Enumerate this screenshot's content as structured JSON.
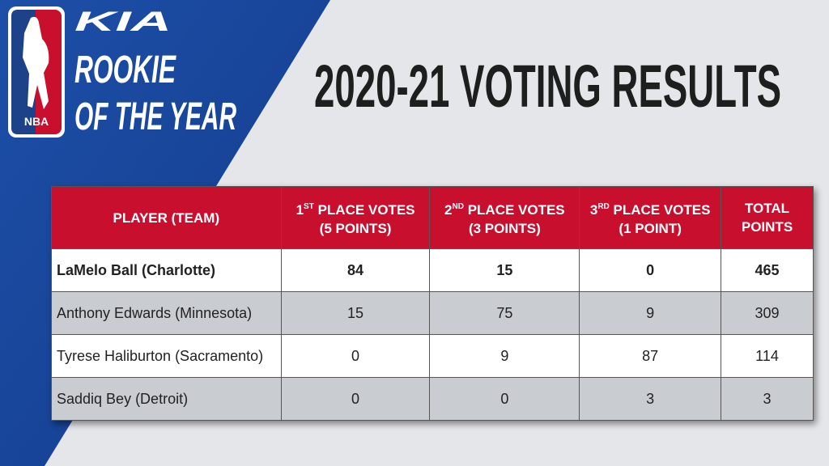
{
  "branding": {
    "sponsor": "KIA",
    "award_line1": "ROOKIE",
    "award_line2": "OF THE YEAR",
    "league": "NBA"
  },
  "title": "2020-21 VOTING RESULTS",
  "table": {
    "columns": [
      {
        "line1": "PLAYER (TEAM)"
      },
      {
        "ordinal": "1",
        "suffix": "ST",
        "line1": "PLACE VOTES",
        "line2": "(5 POINTS)"
      },
      {
        "ordinal": "2",
        "suffix": "ND",
        "line1": "PLACE VOTES",
        "line2": "(3 POINTS)"
      },
      {
        "ordinal": "3",
        "suffix": "RD",
        "line1": "PLACE VOTES",
        "line2": "(1 POINT)"
      },
      {
        "line1": "TOTAL",
        "line2": "POINTS"
      }
    ],
    "rows": [
      [
        "LaMelo Ball (Charlotte)",
        84,
        15,
        0,
        465
      ],
      [
        "Anthony Edwards (Minnesota)",
        15,
        75,
        9,
        309
      ],
      [
        "Tyrese Haliburton (Sacramento)",
        0,
        9,
        87,
        114
      ],
      [
        "Saddiq Bey (Detroit)",
        0,
        0,
        3,
        3
      ]
    ]
  }
}
